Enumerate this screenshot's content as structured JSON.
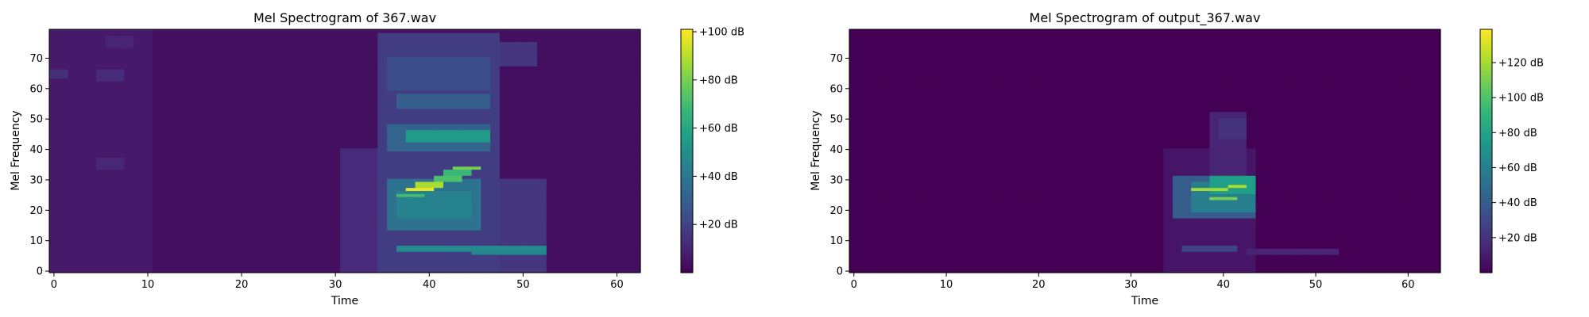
{
  "chart_data": [
    {
      "type": "heatmap",
      "title": "Mel Spectrogram of 367.wav",
      "xlabel": "Time",
      "ylabel": "Mel Frequency",
      "xlim": [
        -0.5,
        62.5
      ],
      "ylim": [
        -0.5,
        79.5
      ],
      "xticks": [
        0,
        10,
        20,
        30,
        40,
        50,
        60
      ],
      "yticks": [
        0,
        10,
        20,
        30,
        40,
        50,
        60,
        70
      ],
      "colormap": "viridis",
      "colorbar": {
        "vmin": 0,
        "vmax": 101,
        "ticks": [
          20,
          40,
          60,
          80,
          100
        ],
        "tick_labels": [
          "+20 dB",
          "+40 dB",
          "+60 dB",
          "+80 dB",
          "+100 dB"
        ]
      },
      "n_frames": 63,
      "n_mels": 80,
      "background_db": 4,
      "regions": [
        {
          "t": [
            0,
            10
          ],
          "mel": [
            0,
            79
          ],
          "db": 7
        },
        {
          "t": [
            0,
            1
          ],
          "mel": [
            64,
            66
          ],
          "db": 14
        },
        {
          "t": [
            5,
            7
          ],
          "mel": [
            63,
            66
          ],
          "db": 12
        },
        {
          "t": [
            6,
            8
          ],
          "mel": [
            74,
            77
          ],
          "db": 10
        },
        {
          "t": [
            5,
            7
          ],
          "mel": [
            34,
            37
          ],
          "db": 11
        },
        {
          "t": [
            31,
            36
          ],
          "mel": [
            0,
            40
          ],
          "db": 12
        },
        {
          "t": [
            35,
            47
          ],
          "mel": [
            0,
            78
          ],
          "db": 18
        },
        {
          "t": [
            36,
            46
          ],
          "mel": [
            60,
            70
          ],
          "db": 24
        },
        {
          "t": [
            37,
            46
          ],
          "mel": [
            54,
            58
          ],
          "db": 30
        },
        {
          "t": [
            36,
            46
          ],
          "mel": [
            40,
            48
          ],
          "db": 32
        },
        {
          "t": [
            38,
            46
          ],
          "mel": [
            43,
            46
          ],
          "db": 55
        },
        {
          "t": [
            36,
            45
          ],
          "mel": [
            14,
            30
          ],
          "db": 38
        },
        {
          "t": [
            37,
            44
          ],
          "mel": [
            18,
            26
          ],
          "db": 45
        },
        {
          "t": [
            45,
            52
          ],
          "mel": [
            0,
            30
          ],
          "db": 16
        },
        {
          "t": [
            46,
            51
          ],
          "mel": [
            68,
            75
          ],
          "db": 16
        },
        {
          "t": [
            37,
            52
          ],
          "mel": [
            7,
            8
          ],
          "db": 48
        },
        {
          "t": [
            45,
            52
          ],
          "mel": [
            6,
            7
          ],
          "db": 46
        },
        {
          "t": [
            37,
            39
          ],
          "mel": [
            25,
            25
          ],
          "db": 70
        },
        {
          "t": [
            38,
            40
          ],
          "mel": [
            27,
            27
          ],
          "db": 98
        },
        {
          "t": [
            39,
            41
          ],
          "mel": [
            28,
            29
          ],
          "db": 88
        },
        {
          "t": [
            41,
            43
          ],
          "mel": [
            30,
            31
          ],
          "db": 72
        },
        {
          "t": [
            42,
            44
          ],
          "mel": [
            32,
            33
          ],
          "db": 68
        },
        {
          "t": [
            43,
            45
          ],
          "mel": [
            34,
            34
          ],
          "db": 80
        }
      ]
    },
    {
      "type": "heatmap",
      "title": "Mel Spectrogram of output_367.wav",
      "xlabel": "Time",
      "ylabel": "Mel Frequency",
      "xlim": [
        -0.5,
        63.5
      ],
      "ylim": [
        -0.5,
        79.5
      ],
      "xticks": [
        0,
        10,
        20,
        30,
        40,
        50,
        60
      ],
      "yticks": [
        0,
        10,
        20,
        30,
        40,
        50,
        60,
        70
      ],
      "colormap": "viridis",
      "colorbar": {
        "vmin": 0,
        "vmax": 139,
        "ticks": [
          20,
          40,
          60,
          80,
          100,
          120
        ],
        "tick_labels": [
          "+20 dB",
          "+40 dB",
          "+60 dB",
          "+80 dB",
          "+100 dB",
          "+120 dB"
        ]
      },
      "n_frames": 64,
      "n_mels": 80,
      "background_db": 0,
      "regions": [
        {
          "t": [
            34,
            43
          ],
          "mel": [
            0,
            40
          ],
          "db": 8
        },
        {
          "t": [
            39,
            42
          ],
          "mel": [
            30,
            52
          ],
          "db": 14
        },
        {
          "t": [
            40,
            42
          ],
          "mel": [
            44,
            50
          ],
          "db": 20
        },
        {
          "t": [
            35,
            43
          ],
          "mel": [
            18,
            31
          ],
          "db": 40
        },
        {
          "t": [
            37,
            43
          ],
          "mel": [
            20,
            29
          ],
          "db": 60
        },
        {
          "t": [
            39,
            43
          ],
          "mel": [
            26,
            31
          ],
          "db": 78
        },
        {
          "t": [
            36,
            41
          ],
          "mel": [
            7,
            8
          ],
          "db": 28
        },
        {
          "t": [
            43,
            52
          ],
          "mel": [
            6,
            7
          ],
          "db": 14
        },
        {
          "t": [
            37,
            40
          ],
          "mel": [
            27,
            27
          ],
          "db": 120
        },
        {
          "t": [
            39,
            41
          ],
          "mel": [
            24,
            24
          ],
          "db": 110
        },
        {
          "t": [
            41,
            42
          ],
          "mel": [
            28,
            28
          ],
          "db": 122
        }
      ]
    }
  ]
}
